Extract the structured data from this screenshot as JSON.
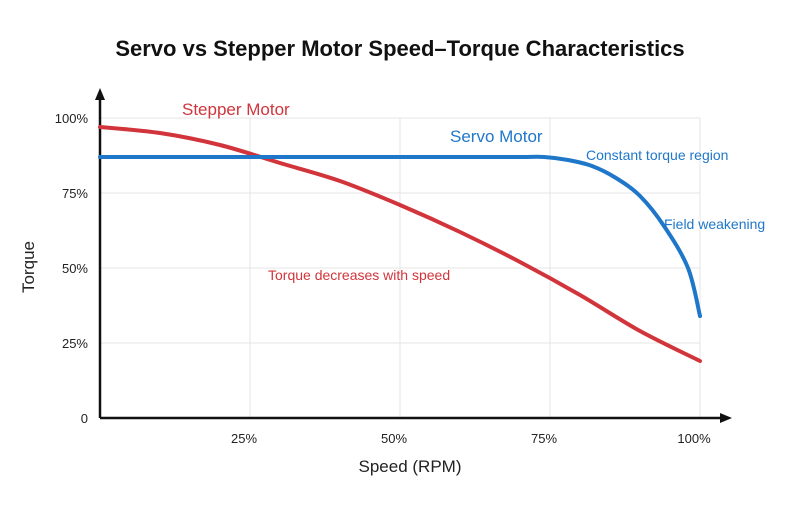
{
  "chart_data": {
    "type": "line",
    "title": "Servo vs Stepper Motor Speed–Torque Characteristics",
    "xlabel": "Speed (RPM)",
    "ylabel": "Torque",
    "xlim": [
      0,
      100
    ],
    "ylim": [
      0,
      100
    ],
    "x_ticks": [
      {
        "value": 25,
        "label": "25%"
      },
      {
        "value": 50,
        "label": "50%"
      },
      {
        "value": 75,
        "label": "75%"
      },
      {
        "value": 100,
        "label": "100%"
      }
    ],
    "y_ticks": [
      {
        "value": 0,
        "label": "0"
      },
      {
        "value": 25,
        "label": "25%"
      },
      {
        "value": 50,
        "label": "50%"
      },
      {
        "value": 75,
        "label": "75%"
      },
      {
        "value": 100,
        "label": "100%"
      }
    ],
    "grid": true,
    "series": [
      {
        "name": "Stepper Motor",
        "color": "#d1353b",
        "x": [
          0,
          10,
          20,
          30,
          40,
          50,
          60,
          70,
          80,
          90,
          100
        ],
        "y": [
          97,
          95,
          91,
          85,
          79,
          71,
          62,
          52,
          41,
          29,
          19
        ]
      },
      {
        "name": "Servo Motor",
        "color": "#1f77c9",
        "x": [
          0,
          20,
          40,
          60,
          70,
          74,
          78,
          82,
          86,
          90,
          94,
          98,
          100
        ],
        "y": [
          87,
          87,
          87,
          87,
          87,
          87,
          86,
          84,
          80,
          74,
          64,
          50,
          34
        ]
      }
    ],
    "annotations": [
      {
        "text": "Torque decreases with speed",
        "x": 28,
        "y": 46,
        "color": "#d1353b"
      },
      {
        "text": "Constant torque region",
        "x": 81,
        "y": 86,
        "color": "#1f77c9"
      },
      {
        "text": "Field weakening",
        "x": 94,
        "y": 63,
        "color": "#1f77c9"
      }
    ]
  }
}
